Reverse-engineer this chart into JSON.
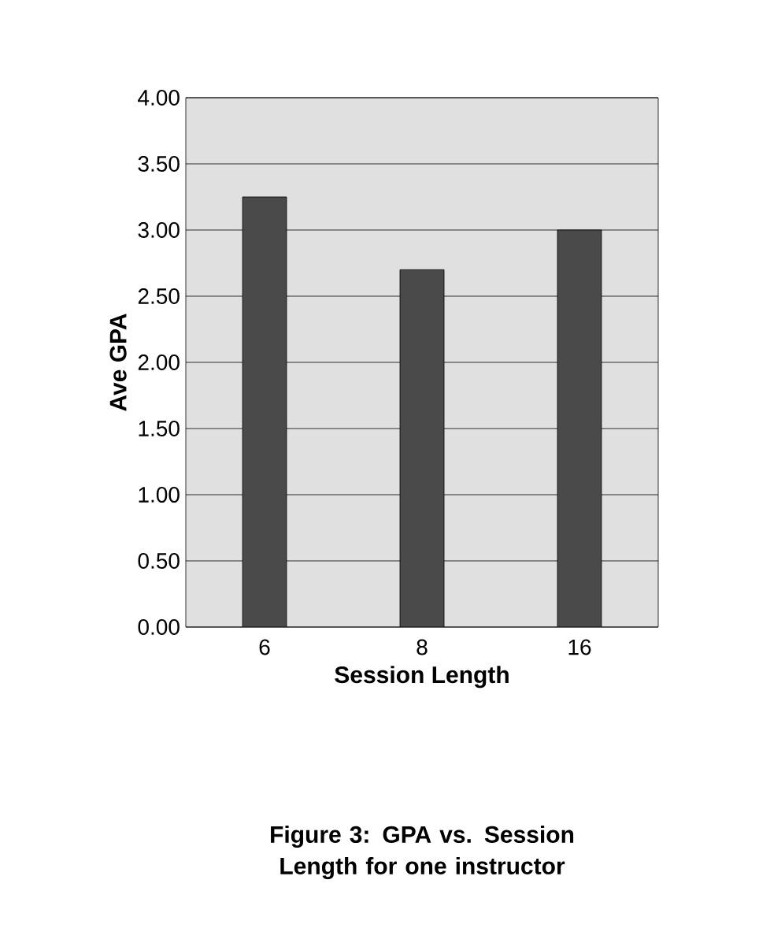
{
  "chart_data": {
    "type": "bar",
    "title": "Figure 3: GPA vs. Session Length for one instructor",
    "xlabel": "Session Length",
    "ylabel": "Ave GPA",
    "categories": [
      "6",
      "8",
      "16"
    ],
    "values": [
      3.25,
      2.7,
      3.0
    ],
    "color": "#4a4a4a",
    "ylim": [
      0,
      4
    ],
    "yticks": [
      {
        "value": 0,
        "label": "0.00"
      },
      {
        "value": 0.5,
        "label": "0.50"
      },
      {
        "value": 1,
        "label": "1.00"
      },
      {
        "value": 1.5,
        "label": "1.50"
      },
      {
        "value": 2,
        "label": "2.00"
      },
      {
        "value": 2.5,
        "label": "2.50"
      },
      {
        "value": 3,
        "label": "3.00"
      },
      {
        "value": 3.5,
        "label": "3.50"
      },
      {
        "value": 4,
        "label": "4.00"
      }
    ],
    "grid": "y"
  }
}
